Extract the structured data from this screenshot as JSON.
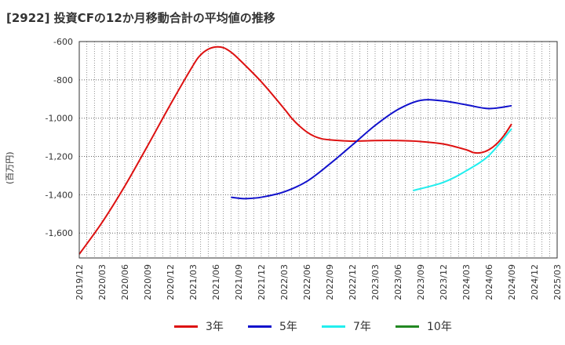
{
  "chart_data": {
    "type": "line",
    "title": "[2922]  投資CFの12か月移動合計の平均値の推移",
    "ylabel": "(百万円)",
    "xlabel": "",
    "ylim": [
      -1730,
      -600
    ],
    "yticks": [
      -600,
      -800,
      -1000,
      -1200,
      -1400,
      -1600
    ],
    "ytick_labels": [
      "-600",
      "-800",
      "-1,000",
      "-1,200",
      "-1,400",
      "-1,600"
    ],
    "xlim": [
      "2019/12",
      "2025/03"
    ],
    "xtick_labels": [
      "2019/12",
      "2020/03",
      "2020/06",
      "2020/09",
      "2020/12",
      "2021/03",
      "2021/06",
      "2021/09",
      "2021/12",
      "2022/03",
      "2022/06",
      "2022/09",
      "2022/12",
      "2023/03",
      "2023/06",
      "2023/09",
      "2023/12",
      "2024/03",
      "2024/06",
      "2024/09",
      "2024/12",
      "2025/03"
    ],
    "grid": true,
    "legend_position": "bottom",
    "series": [
      {
        "name": "3年",
        "color": "#dd1111",
        "x": [
          "2019/12",
          "2020/03",
          "2020/06",
          "2020/09",
          "2020/12",
          "2021/03",
          "2021/04",
          "2021/05",
          "2021/06",
          "2021/07",
          "2021/08",
          "2021/09",
          "2021/12",
          "2022/03",
          "2022/04",
          "2022/05",
          "2022/06",
          "2022/07",
          "2022/08",
          "2022/09",
          "2022/12",
          "2023/03",
          "2023/06",
          "2023/09",
          "2023/12",
          "2024/03",
          "2024/04",
          "2024/05",
          "2024/06",
          "2024/07",
          "2024/08",
          "2024/09"
        ],
        "values": [
          -1710,
          -1545,
          -1355,
          -1145,
          -930,
          -725,
          -670,
          -640,
          -628,
          -632,
          -655,
          -690,
          -810,
          -950,
          -1000,
          -1040,
          -1072,
          -1095,
          -1108,
          -1113,
          -1120,
          -1117,
          -1117,
          -1122,
          -1135,
          -1165,
          -1180,
          -1180,
          -1165,
          -1135,
          -1090,
          -1030
        ]
      },
      {
        "name": "5年",
        "color": "#1111cc",
        "x": [
          "2021/08",
          "2021/09",
          "2021/10",
          "2021/12",
          "2022/03",
          "2022/06",
          "2022/09",
          "2022/12",
          "2023/03",
          "2023/06",
          "2023/09",
          "2023/12",
          "2024/03",
          "2024/06",
          "2024/09"
        ],
        "values": [
          -1413,
          -1418,
          -1420,
          -1413,
          -1385,
          -1330,
          -1240,
          -1140,
          -1038,
          -955,
          -907,
          -910,
          -930,
          -950,
          -935
        ]
      },
      {
        "name": "7年",
        "color": "#22eeee",
        "x": [
          "2023/08",
          "2023/12",
          "2024/03",
          "2024/06",
          "2024/09"
        ],
        "values": [
          -1378,
          -1335,
          -1275,
          -1195,
          -1055
        ]
      },
      {
        "name": "10年",
        "color": "#228822",
        "x": [],
        "values": []
      }
    ]
  }
}
